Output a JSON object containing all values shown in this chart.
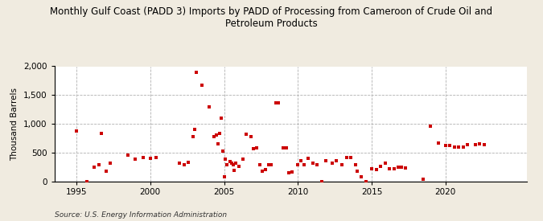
{
  "title": "Monthly Gulf Coast (PADD 3) Imports by PADD of Processing from Cameroon of Crude Oil and\nPetroleum Products",
  "ylabel": "Thousand Barrels",
  "source": "Source: U.S. Energy Information Administration",
  "background_color": "#f0ebe0",
  "plot_bg_color": "#ffffff",
  "marker_color": "#cc0000",
  "marker_size": 12,
  "xlim": [
    1993.5,
    2025.5
  ],
  "ylim": [
    0,
    2000
  ],
  "yticks": [
    0,
    500,
    1000,
    1500,
    2000
  ],
  "xticks": [
    1995,
    2000,
    2005,
    2010,
    2015,
    2020
  ],
  "data": [
    [
      1995.0,
      880
    ],
    [
      1995.7,
      0
    ],
    [
      1996.2,
      250
    ],
    [
      1996.5,
      280
    ],
    [
      1996.7,
      830
    ],
    [
      1997.0,
      175
    ],
    [
      1997.3,
      310
    ],
    [
      1998.5,
      450
    ],
    [
      1999.0,
      390
    ],
    [
      1999.5,
      415
    ],
    [
      2000.0,
      395
    ],
    [
      2000.4,
      415
    ],
    [
      2002.0,
      310
    ],
    [
      2002.3,
      280
    ],
    [
      2002.6,
      330
    ],
    [
      2002.9,
      780
    ],
    [
      2003.0,
      900
    ],
    [
      2003.1,
      1900
    ],
    [
      2003.5,
      1670
    ],
    [
      2004.0,
      1290
    ],
    [
      2004.3,
      780
    ],
    [
      2004.5,
      800
    ],
    [
      2004.6,
      650
    ],
    [
      2004.7,
      830
    ],
    [
      2004.8,
      1100
    ],
    [
      2004.9,
      520
    ],
    [
      2005.0,
      80
    ],
    [
      2005.1,
      390
    ],
    [
      2005.2,
      280
    ],
    [
      2005.4,
      340
    ],
    [
      2005.5,
      310
    ],
    [
      2005.6,
      280
    ],
    [
      2005.7,
      190
    ],
    [
      2005.8,
      310
    ],
    [
      2006.0,
      260
    ],
    [
      2006.3,
      380
    ],
    [
      2006.5,
      820
    ],
    [
      2006.8,
      780
    ],
    [
      2007.0,
      560
    ],
    [
      2007.2,
      580
    ],
    [
      2007.4,
      290
    ],
    [
      2007.6,
      175
    ],
    [
      2007.8,
      200
    ],
    [
      2008.0,
      280
    ],
    [
      2008.2,
      285
    ],
    [
      2008.5,
      1370
    ],
    [
      2008.7,
      1360
    ],
    [
      2009.0,
      580
    ],
    [
      2009.2,
      580
    ],
    [
      2009.4,
      140
    ],
    [
      2009.6,
      160
    ],
    [
      2010.0,
      290
    ],
    [
      2010.2,
      360
    ],
    [
      2010.4,
      290
    ],
    [
      2010.7,
      395
    ],
    [
      2011.0,
      310
    ],
    [
      2011.3,
      280
    ],
    [
      2011.6,
      0
    ],
    [
      2011.9,
      360
    ],
    [
      2012.3,
      315
    ],
    [
      2012.6,
      350
    ],
    [
      2013.0,
      285
    ],
    [
      2013.3,
      415
    ],
    [
      2013.6,
      415
    ],
    [
      2013.9,
      290
    ],
    [
      2014.0,
      180
    ],
    [
      2014.3,
      75
    ],
    [
      2014.6,
      0
    ],
    [
      2015.0,
      215
    ],
    [
      2015.3,
      200
    ],
    [
      2015.6,
      260
    ],
    [
      2015.9,
      310
    ],
    [
      2016.2,
      220
    ],
    [
      2016.5,
      220
    ],
    [
      2016.8,
      250
    ],
    [
      2017.0,
      250
    ],
    [
      2017.3,
      235
    ],
    [
      2018.5,
      30
    ],
    [
      2019.0,
      960
    ],
    [
      2019.5,
      660
    ],
    [
      2020.0,
      620
    ],
    [
      2020.3,
      620
    ],
    [
      2020.6,
      590
    ],
    [
      2020.9,
      600
    ],
    [
      2021.2,
      590
    ],
    [
      2021.5,
      630
    ],
    [
      2022.0,
      630
    ],
    [
      2022.3,
      650
    ],
    [
      2022.6,
      640
    ]
  ]
}
